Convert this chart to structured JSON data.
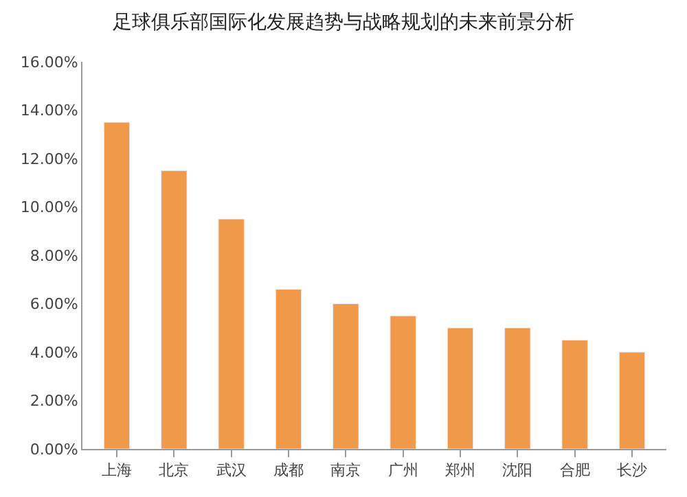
{
  "chart_data": {
    "type": "bar",
    "title": "足球俱乐部国际化发展趋势与战略规划的未来前景分析",
    "categories": [
      "上海",
      "北京",
      "武汉",
      "成都",
      "南京",
      "广州",
      "郑州",
      "沈阳",
      "合肥",
      "长沙"
    ],
    "values": [
      13.5,
      11.5,
      9.5,
      6.6,
      6.0,
      5.5,
      5.0,
      5.0,
      4.5,
      4.0
    ],
    "color": "#f0994a",
    "ylim": [
      0,
      16
    ],
    "yticks": [
      {
        "value": 0,
        "label": "0.00%"
      },
      {
        "value": 2,
        "label": "2.00%"
      },
      {
        "value": 4,
        "label": "4.00%"
      },
      {
        "value": 6,
        "label": "6.00%"
      },
      {
        "value": 8,
        "label": "8.00%"
      },
      {
        "value": 10,
        "label": "10.00%"
      },
      {
        "value": 12,
        "label": "12.00%"
      },
      {
        "value": 14,
        "label": "14.00%"
      },
      {
        "value": 16,
        "label": "16.00%"
      }
    ],
    "grid": false
  }
}
